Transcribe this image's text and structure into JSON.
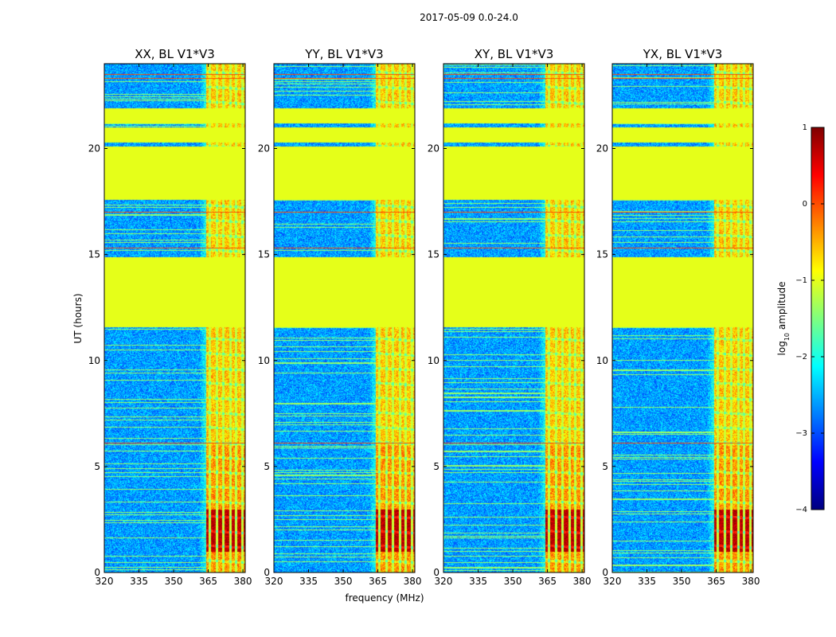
{
  "chart_data": {
    "type": "heatmap",
    "suptitle": "2017-05-09 0.0-24.0",
    "xlabel": "frequency (MHz)",
    "ylabel": "UT (hours)",
    "xlim": [
      320,
      381
    ],
    "ylim": [
      0,
      24
    ],
    "xticks": [
      "320",
      "335",
      "350",
      "365",
      "380"
    ],
    "yticks": [
      "0",
      "5",
      "10",
      "15",
      "20"
    ],
    "xtick_values": [
      320,
      335,
      350,
      365,
      380
    ],
    "ytick_values": [
      0,
      5,
      10,
      15,
      20
    ],
    "panels": [
      {
        "title": "XX, BL V1*V3",
        "polarization": "XX"
      },
      {
        "title": "YY, BL V1*V3",
        "polarization": "YY"
      },
      {
        "title": "XY, BL V1*V3",
        "polarization": "XY"
      },
      {
        "title": "YX, BL V1*V3",
        "polarization": "YX"
      }
    ],
    "colorbar": {
      "label_main": "log",
      "label_sub": "10",
      "label_rest": " amplitude",
      "ticks": [
        "−4",
        "−3",
        "−2",
        "−1",
        "0",
        "1"
      ],
      "tick_values": [
        -4,
        -3,
        -2,
        -1,
        0,
        1
      ],
      "range": [
        -4,
        1
      ]
    },
    "colormap": [
      "#00007f",
      "#0000ff",
      "#007fff",
      "#00ffff",
      "#7fff7f",
      "#ffff00",
      "#ff7f00",
      "#ff0000",
      "#7f0000"
    ],
    "flagged_value": -1.0,
    "flagged_ut_ranges": [
      [
        11.6,
        14.9
      ],
      [
        17.6,
        20.1
      ],
      [
        20.3,
        21.0
      ],
      [
        21.2,
        21.9
      ]
    ],
    "band_mhz": [
      364,
      381
    ],
    "background_log_amplitude": -2.6,
    "band_log_amplitude": -0.6,
    "peak_band_ut_range": [
      1.0,
      3.0
    ],
    "peak_log_amplitude": 0.7
  }
}
